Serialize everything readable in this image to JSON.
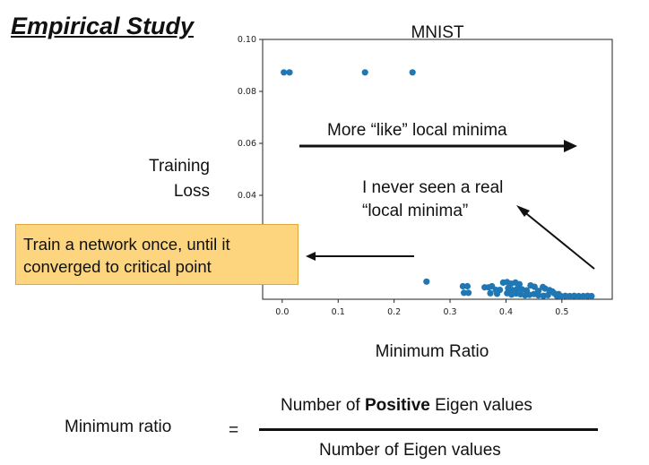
{
  "slide": {
    "title": "Empirical Study"
  },
  "chart_data": {
    "type": "scatter",
    "title": "MNIST",
    "xlabel": "Minimum Ratio",
    "ylabel_line1": "Training",
    "ylabel_line2": "Loss",
    "xlim": [
      -0.035,
      0.59
    ],
    "ylim": [
      0.0,
      0.1
    ],
    "xticks": [
      0.0,
      0.1,
      0.2,
      0.3,
      0.4,
      0.5
    ],
    "xtick_labels": [
      "0.0",
      "0.1",
      "0.2",
      "0.3",
      "0.4",
      "0.5"
    ],
    "yticks": [
      0.04,
      0.06,
      0.08,
      0.1
    ],
    "ytick_labels": [
      "0.04",
      "0.06",
      "0.08",
      "0.10"
    ],
    "grid": false,
    "point_color": "#1f77b4",
    "points": [
      [
        0.003,
        0.0873
      ],
      [
        0.013,
        0.0873
      ],
      [
        0.148,
        0.0873
      ],
      [
        0.233,
        0.0873
      ],
      [
        0.258,
        0.0068
      ],
      [
        0.323,
        0.005
      ],
      [
        0.331,
        0.005
      ],
      [
        0.325,
        0.0025
      ],
      [
        0.333,
        0.0025
      ],
      [
        0.362,
        0.0046
      ],
      [
        0.369,
        0.0046
      ],
      [
        0.375,
        0.005
      ],
      [
        0.382,
        0.0036
      ],
      [
        0.389,
        0.0036
      ],
      [
        0.372,
        0.0023
      ],
      [
        0.384,
        0.0021
      ],
      [
        0.395,
        0.0064
      ],
      [
        0.402,
        0.0066
      ],
      [
        0.409,
        0.006
      ],
      [
        0.417,
        0.0064
      ],
      [
        0.424,
        0.0058
      ],
      [
        0.404,
        0.0042
      ],
      [
        0.411,
        0.0036
      ],
      [
        0.42,
        0.004
      ],
      [
        0.429,
        0.0038
      ],
      [
        0.437,
        0.0034
      ],
      [
        0.444,
        0.0053
      ],
      [
        0.451,
        0.0048
      ],
      [
        0.458,
        0.0032
      ],
      [
        0.466,
        0.0047
      ],
      [
        0.402,
        0.0023
      ],
      [
        0.41,
        0.0018
      ],
      [
        0.418,
        0.0022
      ],
      [
        0.426,
        0.0019
      ],
      [
        0.434,
        0.0015
      ],
      [
        0.442,
        0.0017
      ],
      [
        0.45,
        0.002
      ],
      [
        0.458,
        0.0015
      ],
      [
        0.467,
        0.0013
      ],
      [
        0.475,
        0.0016
      ],
      [
        0.483,
        0.003
      ],
      [
        0.491,
        0.0013
      ],
      [
        0.498,
        0.0012
      ],
      [
        0.506,
        0.0013
      ],
      [
        0.514,
        0.0012
      ],
      [
        0.522,
        0.0013
      ],
      [
        0.53,
        0.0012
      ],
      [
        0.538,
        0.0012
      ],
      [
        0.546,
        0.0013
      ],
      [
        0.553,
        0.0012
      ],
      [
        0.47,
        0.0041
      ],
      [
        0.478,
        0.0035
      ],
      [
        0.486,
        0.0023
      ],
      [
        0.494,
        0.002
      ]
    ],
    "overlay_text": {
      "top_arrow": "More “like” local minima",
      "note_line1": "I never seen a real",
      "note_line2": "“local minima”"
    }
  },
  "callout": {
    "line1": "Train a network once, until it",
    "line2": "converged to critical point"
  },
  "formula": {
    "lhs": "Minimum ratio",
    "equals": "=",
    "numerator_pre": "Number of ",
    "numerator_bold": "Positive",
    "numerator_post": " Eigen values",
    "denominator": "Number of Eigen values"
  }
}
